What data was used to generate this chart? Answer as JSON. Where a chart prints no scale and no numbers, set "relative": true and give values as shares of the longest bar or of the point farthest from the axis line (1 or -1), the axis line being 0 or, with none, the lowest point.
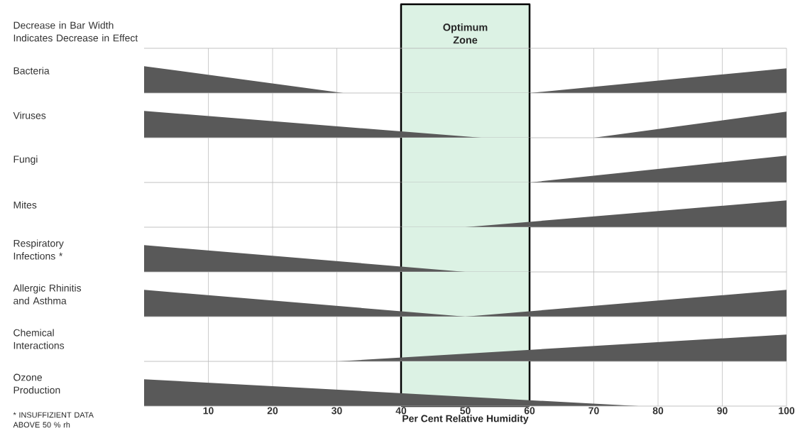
{
  "chart_data": [
    {
      "type": "area",
      "relative": true,
      "title": "Decrease in Bar Width Indicates Decrease in Effect",
      "ylabel": "Bacteria",
      "xlim": [
        0,
        100
      ],
      "xticks": [
        10,
        20,
        30,
        40,
        50,
        60,
        70,
        80,
        90,
        100
      ],
      "tick_labels": false,
      "grid": "x",
      "color": "#595959",
      "bands": [
        {
          "axis": "x",
          "from": 40,
          "to": 60,
          "label": "Optimum Zone",
          "color": "#dcf2e4"
        }
      ],
      "series": [
        {
          "x": [
            0,
            31
          ],
          "values": [
            1,
            0
          ]
        },
        {
          "x": [
            60,
            100
          ],
          "values": [
            0,
            0.92
          ]
        }
      ]
    },
    {
      "type": "area",
      "relative": true,
      "ylabel": "Viruses",
      "xlim": [
        0,
        100
      ],
      "xticks": [
        10,
        20,
        30,
        40,
        50,
        60,
        70,
        80,
        90,
        100
      ],
      "tick_labels": false,
      "grid": "x",
      "color": "#595959",
      "bands": [
        {
          "axis": "x",
          "from": 40,
          "to": 60,
          "color": "#dcf2e4"
        }
      ],
      "series": [
        {
          "x": [
            0,
            52.5
          ],
          "values": [
            1,
            0
          ]
        },
        {
          "x": [
            70,
            100
          ],
          "values": [
            0,
            0.97
          ]
        }
      ]
    },
    {
      "type": "area",
      "relative": true,
      "ylabel": "Fungi",
      "xlim": [
        0,
        100
      ],
      "xticks": [
        10,
        20,
        30,
        40,
        50,
        60,
        70,
        80,
        90,
        100
      ],
      "tick_labels": false,
      "grid": "x",
      "color": "#595959",
      "bands": [
        {
          "axis": "x",
          "from": 40,
          "to": 60,
          "color": "#dcf2e4"
        }
      ],
      "series": [
        {
          "x": [
            60,
            100
          ],
          "values": [
            0,
            1
          ]
        }
      ]
    },
    {
      "type": "area",
      "relative": true,
      "ylabel": "Mites",
      "xlim": [
        0,
        100
      ],
      "xticks": [
        10,
        20,
        30,
        40,
        50,
        60,
        70,
        80,
        90,
        100
      ],
      "tick_labels": false,
      "grid": "x",
      "color": "#595959",
      "bands": [
        {
          "axis": "x",
          "from": 40,
          "to": 60,
          "color": "#dcf2e4"
        }
      ],
      "series": [
        {
          "x": [
            50,
            100
          ],
          "values": [
            0,
            1
          ]
        }
      ]
    },
    {
      "type": "area",
      "relative": true,
      "ylabel": "Respiratory Infections *",
      "xlim": [
        0,
        100
      ],
      "xticks": [
        10,
        20,
        30,
        40,
        50,
        60,
        70,
        80,
        90,
        100
      ],
      "tick_labels": false,
      "grid": "x",
      "color": "#595959",
      "bands": [
        {
          "axis": "x",
          "from": 40,
          "to": 60,
          "color": "#dcf2e4"
        }
      ],
      "series": [
        {
          "x": [
            0,
            50
          ],
          "values": [
            1,
            0
          ]
        }
      ]
    },
    {
      "type": "area",
      "relative": true,
      "ylabel": "Allergic Rhinitis and Asthma",
      "xlim": [
        0,
        100
      ],
      "xticks": [
        10,
        20,
        30,
        40,
        50,
        60,
        70,
        80,
        90,
        100
      ],
      "tick_labels": false,
      "grid": "x",
      "color": "#595959",
      "bands": [
        {
          "axis": "x",
          "from": 40,
          "to": 60,
          "color": "#dcf2e4"
        }
      ],
      "series": [
        {
          "x": [
            0,
            50
          ],
          "values": [
            1,
            0
          ]
        },
        {
          "x": [
            50,
            100
          ],
          "values": [
            0,
            1
          ]
        }
      ]
    },
    {
      "type": "area",
      "relative": true,
      "ylabel": "Chemical Interactions",
      "xlim": [
        0,
        100
      ],
      "xticks": [
        10,
        20,
        30,
        40,
        50,
        60,
        70,
        80,
        90,
        100
      ],
      "tick_labels": false,
      "grid": "x",
      "color": "#595959",
      "bands": [
        {
          "axis": "x",
          "from": 40,
          "to": 60,
          "color": "#dcf2e4"
        }
      ],
      "series": [
        {
          "x": [
            30,
            100
          ],
          "values": [
            0,
            1
          ]
        }
      ]
    },
    {
      "type": "area",
      "relative": true,
      "ylabel": "Ozone Production",
      "xlabel": "Per Cent Relative Humidity",
      "xlim": [
        0,
        100
      ],
      "xticks": [
        10,
        20,
        30,
        40,
        50,
        60,
        70,
        80,
        90,
        100
      ],
      "tick_labels": "x",
      "grid": "x",
      "color": "#595959",
      "bands": [
        {
          "axis": "x",
          "from": 40,
          "to": 60,
          "color": "#dcf2e4"
        }
      ],
      "annotations": [
        "* INSUFFIZIENT DATA ABOVE  50 % rh"
      ],
      "series": [
        {
          "x": [
            0,
            77
          ],
          "values": [
            1,
            0
          ]
        }
      ]
    }
  ]
}
